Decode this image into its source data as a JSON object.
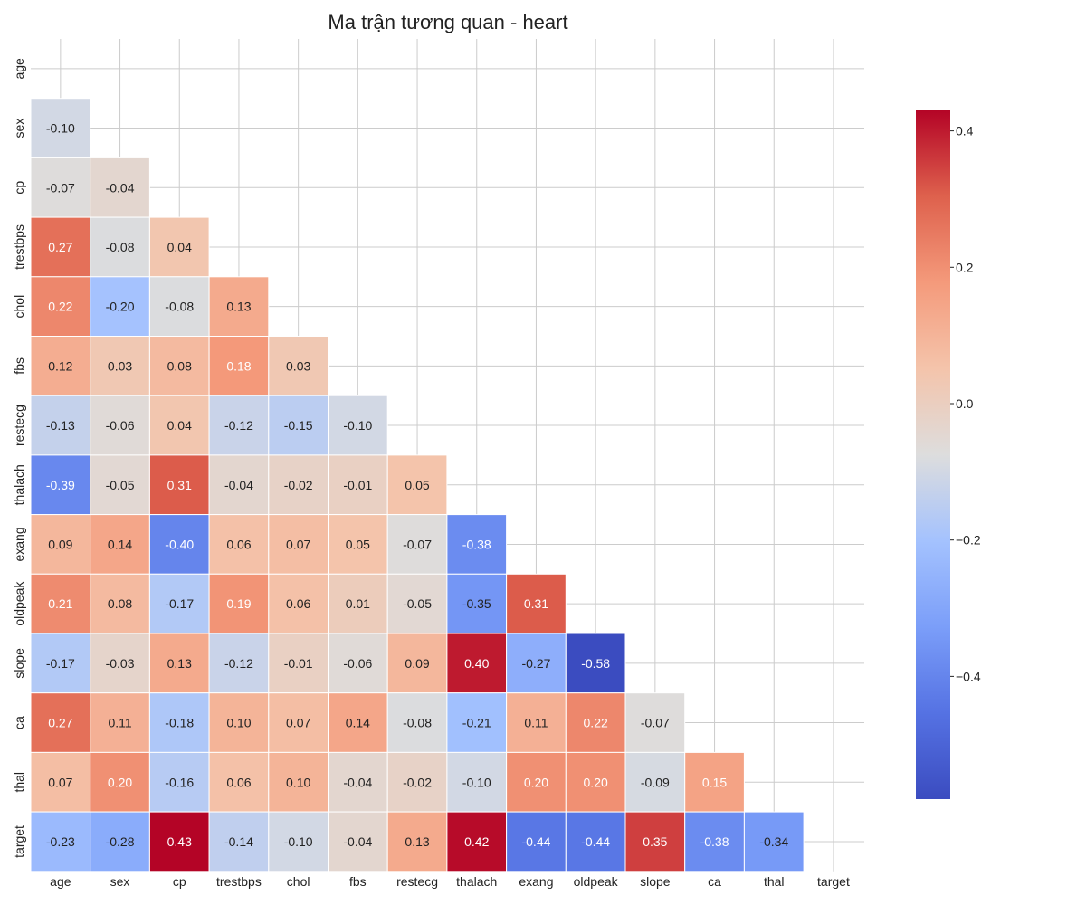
{
  "chart_data": {
    "type": "heatmap",
    "title": "Ma trận tương quan - heart",
    "variables": [
      "age",
      "sex",
      "cp",
      "trestbps",
      "chol",
      "fbs",
      "restecg",
      "thalach",
      "exang",
      "oldpeak",
      "slope",
      "ca",
      "thal",
      "target"
    ],
    "mask": "upper-triangle-including-diagonal",
    "values": [
      [],
      [
        -0.1
      ],
      [
        -0.07,
        -0.04
      ],
      [
        0.27,
        -0.08,
        0.04
      ],
      [
        0.22,
        -0.2,
        -0.08,
        0.13
      ],
      [
        0.12,
        0.03,
        0.08,
        0.18,
        0.03
      ],
      [
        -0.13,
        -0.06,
        0.04,
        -0.12,
        -0.15,
        -0.1
      ],
      [
        -0.39,
        -0.05,
        0.31,
        -0.04,
        -0.02,
        -0.01,
        0.05
      ],
      [
        0.09,
        0.14,
        -0.4,
        0.06,
        0.07,
        0.05,
        -0.07,
        -0.38
      ],
      [
        0.21,
        0.08,
        -0.17,
        0.19,
        0.06,
        0.01,
        -0.05,
        -0.35,
        0.31
      ],
      [
        -0.17,
        -0.03,
        0.13,
        -0.12,
        -0.01,
        -0.06,
        0.09,
        0.4,
        -0.27,
        -0.58
      ],
      [
        0.27,
        0.11,
        -0.18,
        0.1,
        0.07,
        0.14,
        -0.08,
        -0.21,
        0.11,
        0.22,
        -0.07
      ],
      [
        0.07,
        0.2,
        -0.16,
        0.06,
        0.1,
        -0.04,
        -0.02,
        -0.1,
        0.2,
        0.2,
        -0.09,
        0.15
      ],
      [
        -0.23,
        -0.28,
        0.43,
        -0.14,
        -0.1,
        -0.04,
        0.13,
        0.42,
        -0.44,
        -0.44,
        0.35,
        -0.38,
        -0.34
      ]
    ],
    "value_format": "0.00",
    "colormap": "coolwarm",
    "color_range": [
      -0.58,
      0.43
    ],
    "colorbar": {
      "ticks": [
        0.4,
        0.2,
        0.0,
        -0.2,
        -0.4
      ],
      "tick_labels": [
        "0.4",
        "0.2",
        "0.0",
        "−0.2",
        "−0.4"
      ]
    },
    "grid": true
  }
}
